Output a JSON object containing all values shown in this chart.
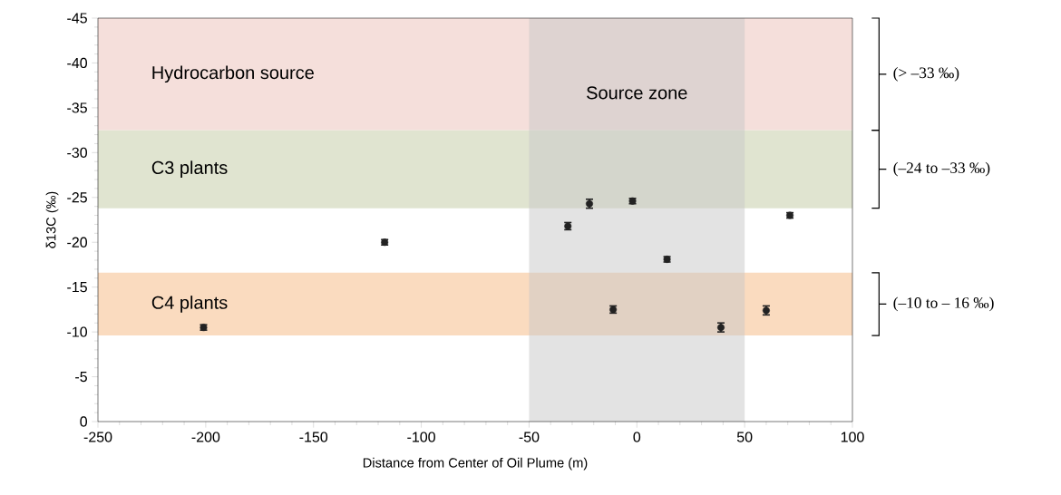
{
  "chart_data": {
    "type": "scatter",
    "xlabel": "Distance from Center of Oil Plume (m)",
    "ylabel": "δ13C  (‰)",
    "x": [
      -201,
      -117,
      -32,
      -22,
      -2,
      14,
      -11,
      39,
      60,
      71
    ],
    "series": [
      {
        "color": "#222222",
        "values": [
          -10.5,
          -20,
          -21.8,
          -24.3,
          -24.6,
          -18.1,
          -12.5,
          -10.5,
          -12.4,
          -23.0
        ],
        "errors": [
          0.3,
          0.3,
          0.4,
          0.5,
          0.3,
          0.3,
          0.4,
          0.5,
          0.5,
          0.3
        ]
      }
    ],
    "xlim": [
      -250,
      100
    ],
    "xticks": [
      -250,
      -200,
      -150,
      -100,
      -50,
      0,
      50,
      100
    ],
    "ylim": [
      0,
      -45
    ],
    "yticks": [
      0,
      -5,
      -10,
      -15,
      -20,
      -25,
      -30,
      -35,
      -40,
      -45
    ],
    "bands": [
      {
        "axis": "y",
        "from": -45,
        "to": -32.5,
        "label": "Hydrocarbon source",
        "color": "#f5dfdb"
      },
      {
        "axis": "y",
        "from": -32.5,
        "to": -23.8,
        "label": "C3 plants",
        "color": "#e0e4d0"
      },
      {
        "axis": "y",
        "from": -16.6,
        "to": -9.6,
        "label": "C4 plants",
        "color": "#fadbbf"
      },
      {
        "axis": "x",
        "from": -50,
        "to": 50,
        "label": "Source zone",
        "color": "#c8c8c8"
      }
    ],
    "annotations": [
      "(> –33 ‰)",
      "(–24 to –33 ‰)",
      "(–10 to – 16 ‰)"
    ],
    "grid": false
  }
}
